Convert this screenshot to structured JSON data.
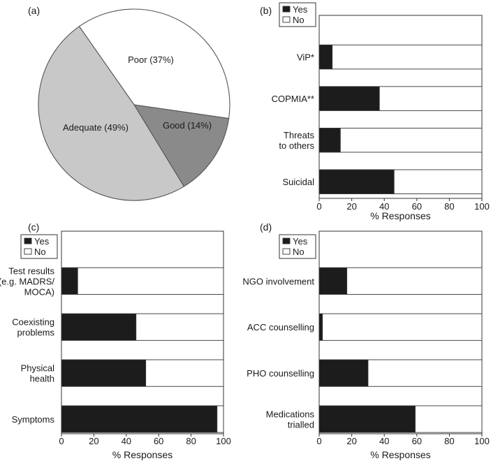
{
  "colors": {
    "yes": "#1c1c1c",
    "no": "#ffffff",
    "pie_poor": "#ffffff",
    "pie_good": "#8a8a8a",
    "pie_adequate": "#c8c8c8",
    "stroke": "#555555"
  },
  "chart_data": [
    {
      "panel": "(a)",
      "type": "pie",
      "slices": [
        {
          "label": "Poor (37%)",
          "value": 37
        },
        {
          "label": "Good (14%)",
          "value": 14
        },
        {
          "label": "Adequate (49%)",
          "value": 49
        }
      ]
    },
    {
      "panel": "(b)",
      "type": "bar",
      "stacked": true,
      "orientation": "horizontal",
      "categories": [
        [
          "ViP*"
        ],
        [
          "COPMIA**"
        ],
        [
          "Threats",
          "to others"
        ],
        [
          "Suicidal"
        ]
      ],
      "series": [
        {
          "name": "Yes",
          "values": [
            8,
            37,
            13,
            46
          ]
        },
        {
          "name": "No",
          "values": [
            92,
            63,
            87,
            54
          ]
        }
      ],
      "xlabel": "% Responses",
      "xlim": [
        0,
        100
      ],
      "xticks": [
        "0",
        "20",
        "40",
        "60",
        "80",
        "100"
      ],
      "legend": "top-left"
    },
    {
      "panel": "(c)",
      "type": "bar",
      "stacked": true,
      "orientation": "horizontal",
      "categories": [
        [
          "Test results",
          "(e.g. MADRS/",
          "MOCA)"
        ],
        [
          "Coexisting",
          "problems"
        ],
        [
          "Physical",
          "health"
        ],
        [
          "Symptoms"
        ]
      ],
      "series": [
        {
          "name": "Yes",
          "values": [
            10,
            46,
            52,
            96
          ]
        },
        {
          "name": "No",
          "values": [
            90,
            54,
            48,
            4
          ]
        }
      ],
      "xlabel": "% Responses",
      "xlim": [
        0,
        100
      ],
      "xticks": [
        "0",
        "20",
        "40",
        "60",
        "80",
        "100"
      ],
      "legend": "top-left"
    },
    {
      "panel": "(d)",
      "type": "bar",
      "stacked": true,
      "orientation": "horizontal",
      "categories": [
        [
          "NGO involvement"
        ],
        [
          "ACC counselling"
        ],
        [
          "PHO counselling"
        ],
        [
          "Medications",
          "trialled"
        ]
      ],
      "series": [
        {
          "name": "Yes",
          "values": [
            17,
            2,
            30,
            59
          ]
        },
        {
          "name": "No",
          "values": [
            83,
            98,
            70,
            41
          ]
        }
      ],
      "xlabel": "% Responses",
      "xlim": [
        0,
        100
      ],
      "xticks": [
        "0",
        "20",
        "40",
        "60",
        "80",
        "100"
      ],
      "legend": "top-left"
    }
  ]
}
